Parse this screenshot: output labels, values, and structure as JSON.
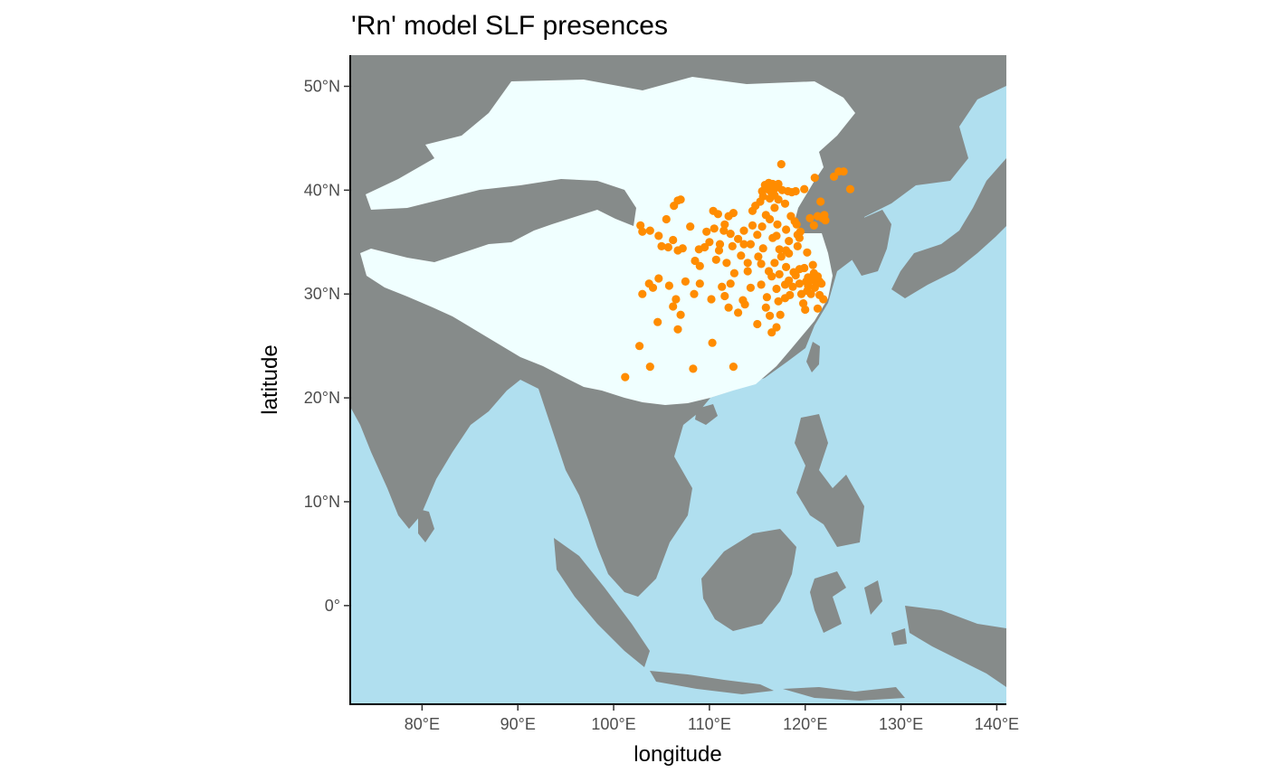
{
  "chart_data": {
    "type": "scatter",
    "title": "'Rn' model SLF presences",
    "xlabel": "longitude",
    "ylabel": "latitude",
    "xlim": [
      72.5,
      141
    ],
    "ylim": [
      -9.5,
      53
    ],
    "x_ticks": [
      {
        "value": 80,
        "label": "80°E"
      },
      {
        "value": 90,
        "label": "90°E"
      },
      {
        "value": 100,
        "label": "100°E"
      },
      {
        "value": 110,
        "label": "110°E"
      },
      {
        "value": 120,
        "label": "120°E"
      },
      {
        "value": 130,
        "label": "130°E"
      },
      {
        "value": 140,
        "label": "140°E"
      }
    ],
    "y_ticks": [
      {
        "value": 0,
        "label": "0°"
      },
      {
        "value": 10,
        "label": "10°N"
      },
      {
        "value": 20,
        "label": "20°N"
      },
      {
        "value": 30,
        "label": "30°N"
      },
      {
        "value": 40,
        "label": "40°N"
      },
      {
        "value": 50,
        "label": "50°N"
      }
    ],
    "grid": false,
    "colors": {
      "sea": "#b0dfef",
      "land": "#868b8a",
      "suitable_region": "#f0ffff",
      "points": "#ff8c00"
    },
    "points": [
      [
        117.5,
        42.5
      ],
      [
        123.5,
        41.8
      ],
      [
        124.0,
        41.8
      ],
      [
        123.0,
        41.3
      ],
      [
        121.0,
        41.2
      ],
      [
        124.7,
        40.1
      ],
      [
        115.8,
        40.5
      ],
      [
        116.2,
        40.7
      ],
      [
        116.6,
        40.6
      ],
      [
        117.2,
        40.6
      ],
      [
        116.9,
        40.2
      ],
      [
        116.4,
        39.9
      ],
      [
        116.0,
        40.1
      ],
      [
        115.5,
        39.9
      ],
      [
        117.6,
        40.0
      ],
      [
        118.2,
        39.9
      ],
      [
        118.6,
        39.8
      ],
      [
        119.0,
        39.9
      ],
      [
        117.2,
        39.1
      ],
      [
        116.8,
        39.5
      ],
      [
        116.3,
        39.2
      ],
      [
        115.6,
        39.4
      ],
      [
        115.3,
        38.9
      ],
      [
        114.5,
        38.0
      ],
      [
        119.9,
        40.1
      ],
      [
        121.6,
        38.9
      ],
      [
        121.3,
        37.5
      ],
      [
        121.8,
        37.3
      ],
      [
        122.1,
        37.1
      ],
      [
        122.0,
        37.6
      ],
      [
        120.5,
        37.3
      ],
      [
        120.9,
        36.6
      ],
      [
        119.1,
        36.7
      ],
      [
        117.1,
        36.7
      ],
      [
        118.0,
        36.2
      ],
      [
        117.0,
        35.6
      ],
      [
        115.5,
        36.5
      ],
      [
        116.6,
        35.4
      ],
      [
        118.3,
        35.1
      ],
      [
        119.4,
        35.4
      ],
      [
        117.3,
        34.3
      ],
      [
        118.3,
        33.9
      ],
      [
        119.2,
        34.6
      ],
      [
        120.2,
        34.0
      ],
      [
        120.9,
        32.0
      ],
      [
        120.3,
        31.6
      ],
      [
        120.6,
        31.3
      ],
      [
        121.5,
        31.2
      ],
      [
        121.2,
        31.0
      ],
      [
        120.9,
        31.5
      ],
      [
        120.2,
        30.3
      ],
      [
        120.6,
        30.0
      ],
      [
        121.5,
        29.9
      ],
      [
        121.0,
        30.6
      ],
      [
        119.8,
        29.1
      ],
      [
        120.0,
        28.5
      ],
      [
        121.3,
        28.6
      ],
      [
        119.6,
        30.0
      ],
      [
        118.8,
        32.1
      ],
      [
        119.4,
        32.4
      ],
      [
        119.9,
        32.5
      ],
      [
        118.3,
        31.3
      ],
      [
        117.3,
        31.9
      ],
      [
        117.9,
        30.9
      ],
      [
        116.5,
        31.7
      ],
      [
        118.4,
        29.9
      ],
      [
        117.0,
        30.5
      ],
      [
        116.0,
        29.7
      ],
      [
        115.9,
        28.7
      ],
      [
        117.2,
        29.3
      ],
      [
        117.4,
        28.0
      ],
      [
        116.3,
        27.9
      ],
      [
        117.0,
        26.8
      ],
      [
        115.0,
        27.1
      ],
      [
        116.5,
        26.3
      ],
      [
        112.5,
        23.0
      ],
      [
        113.0,
        28.2
      ],
      [
        113.5,
        29.4
      ],
      [
        114.3,
        30.6
      ],
      [
        111.3,
        30.7
      ],
      [
        112.2,
        31.0
      ],
      [
        112.6,
        32.0
      ],
      [
        111.8,
        33.0
      ],
      [
        113.6,
        34.8
      ],
      [
        112.4,
        34.6
      ],
      [
        114.3,
        34.8
      ],
      [
        115.6,
        34.4
      ],
      [
        114.0,
        33.0
      ],
      [
        115.1,
        33.6
      ],
      [
        113.0,
        35.3
      ],
      [
        113.6,
        36.1
      ],
      [
        112.5,
        37.8
      ],
      [
        111.5,
        36.1
      ],
      [
        112.0,
        37.5
      ],
      [
        110.4,
        38.0
      ],
      [
        108.9,
        34.3
      ],
      [
        109.5,
        34.5
      ],
      [
        107.2,
        34.4
      ],
      [
        108.5,
        33.2
      ],
      [
        106.7,
        34.2
      ],
      [
        109.0,
        32.7
      ],
      [
        107.5,
        31.2
      ],
      [
        106.5,
        29.5
      ],
      [
        105.8,
        30.8
      ],
      [
        104.1,
        30.6
      ],
      [
        103.7,
        31.0
      ],
      [
        103.0,
        30.0
      ],
      [
        104.7,
        31.5
      ],
      [
        102.7,
        25.0
      ],
      [
        104.6,
        27.3
      ],
      [
        106.7,
        26.6
      ],
      [
        108.3,
        22.8
      ],
      [
        110.3,
        25.3
      ],
      [
        101.2,
        22.0
      ],
      [
        103.8,
        23.0
      ],
      [
        103.8,
        36.1
      ],
      [
        102.8,
        36.6
      ],
      [
        106.3,
        38.5
      ],
      [
        106.7,
        39.0
      ],
      [
        107.0,
        39.1
      ],
      [
        105.5,
        37.2
      ],
      [
        106.2,
        35.2
      ],
      [
        104.7,
        35.6
      ],
      [
        110.0,
        35.0
      ],
      [
        110.5,
        36.3
      ],
      [
        111.0,
        34.2
      ],
      [
        105.0,
        34.6
      ],
      [
        105.7,
        34.5
      ],
      [
        118.5,
        37.5
      ],
      [
        119.5,
        36.0
      ],
      [
        118.0,
        34.2
      ],
      [
        120.8,
        32.8
      ],
      [
        121.3,
        31.7
      ],
      [
        119.4,
        31.0
      ],
      [
        118.7,
        30.7
      ],
      [
        117.9,
        29.6
      ],
      [
        115.0,
        35.7
      ],
      [
        114.5,
        36.6
      ],
      [
        116.8,
        38.3
      ],
      [
        115.9,
        37.6
      ],
      [
        119.2,
        35.7
      ],
      [
        113.3,
        33.7
      ],
      [
        114.0,
        32.2
      ],
      [
        115.4,
        32.9
      ],
      [
        112.2,
        35.8
      ],
      [
        111.1,
        34.8
      ],
      [
        110.7,
        33.3
      ],
      [
        109.0,
        31.0
      ],
      [
        108.4,
        30.0
      ],
      [
        107.0,
        28.0
      ],
      [
        106.2,
        28.8
      ],
      [
        103.0,
        36.0
      ],
      [
        108.0,
        36.5
      ],
      [
        109.7,
        36.0
      ],
      [
        110.9,
        37.7
      ],
      [
        111.6,
        36.7
      ],
      [
        114.8,
        38.5
      ],
      [
        117.9,
        38.7
      ],
      [
        118.9,
        37.0
      ],
      [
        116.3,
        37.2
      ],
      [
        121.7,
        31.0
      ],
      [
        119.0,
        31.8
      ],
      [
        118.0,
        32.6
      ],
      [
        116.8,
        33.0
      ],
      [
        117.5,
        33.6
      ],
      [
        120.1,
        31.2
      ],
      [
        120.3,
        30.8
      ],
      [
        121.9,
        29.5
      ],
      [
        116.2,
        32.2
      ],
      [
        115.4,
        30.9
      ],
      [
        113.7,
        29.0
      ],
      [
        112.0,
        28.7
      ],
      [
        110.2,
        29.5
      ],
      [
        111.6,
        29.8
      ]
    ]
  }
}
